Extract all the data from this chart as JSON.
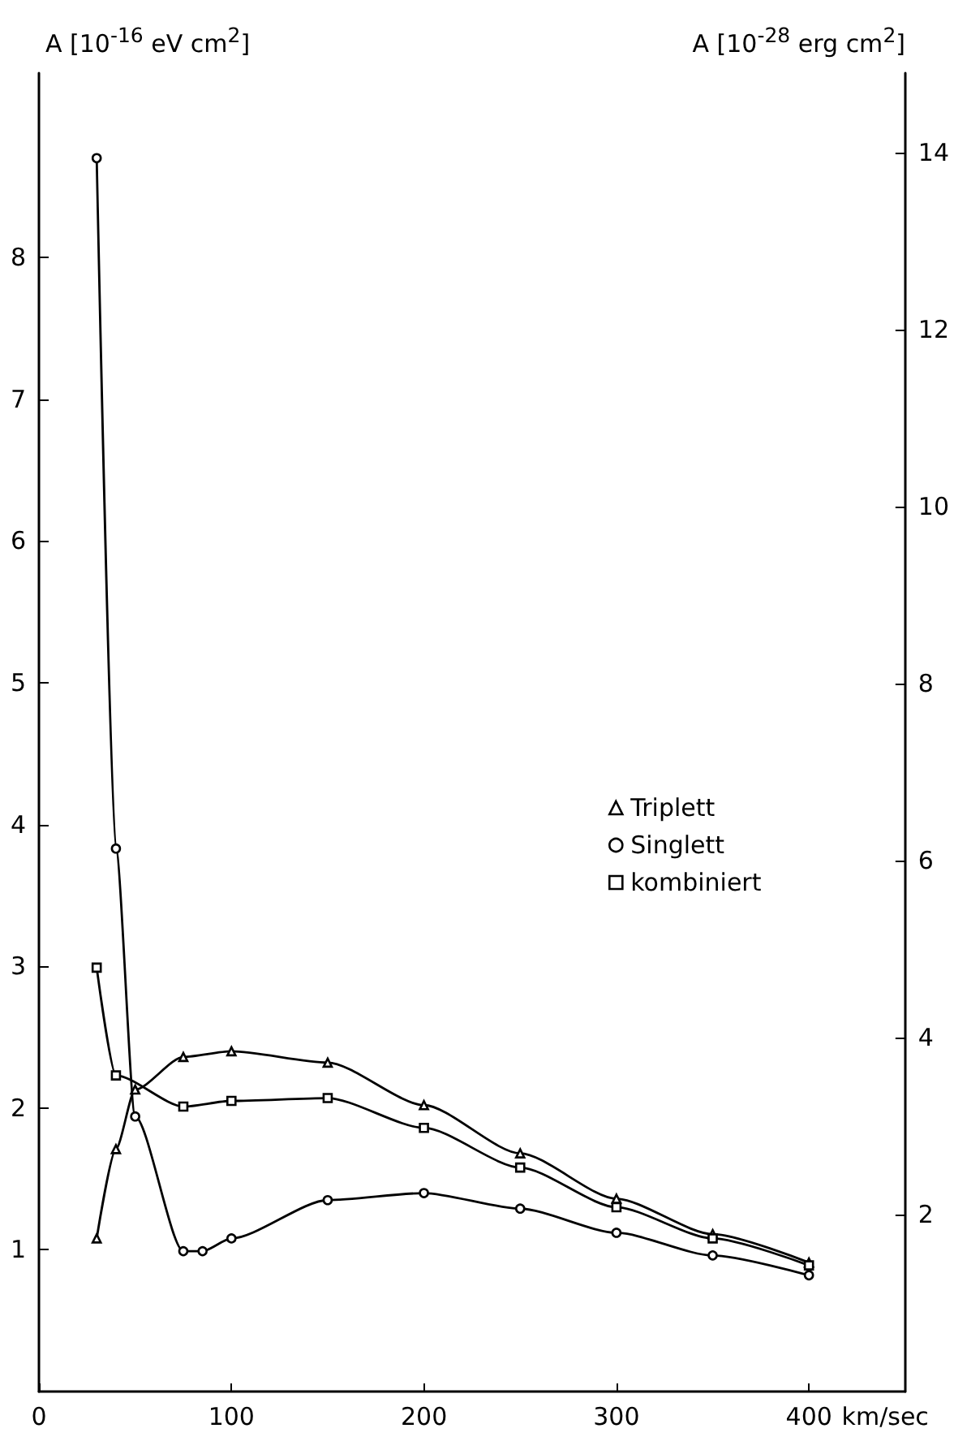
{
  "chart_data": {
    "type": "line",
    "xlabel": "km/sec",
    "ylabel": "A [10$^{-16}$ eV cm$^{2}$]",
    "y2label": "A [10$^{-28}$ erg cm$^{2}$]",
    "xlim": [
      0,
      450
    ],
    "xticks": [
      0,
      100,
      200,
      300,
      400
    ],
    "ylim": [
      0,
      9.3
    ],
    "yticks": [
      1,
      2,
      3,
      4,
      5,
      6,
      7,
      8
    ],
    "y2lim": [
      0,
      14.9
    ],
    "y2ticks": [
      2,
      4,
      6,
      8,
      10,
      12,
      14
    ],
    "grid": false,
    "legend": "right",
    "line_style": "solid",
    "series": [
      {
        "name": "Triplett",
        "color": "#000000",
        "marker": "triangle",
        "x": [
          30,
          40,
          50,
          75,
          100,
          150,
          200,
          250,
          300,
          350,
          400
        ],
        "values": [
          1.08,
          1.71,
          2.13,
          2.36,
          2.4,
          2.32,
          2.02,
          1.68,
          1.36,
          1.11,
          0.91
        ]
      },
      {
        "name": "Singlett",
        "color": "#000000",
        "marker": "circle",
        "x": [
          30,
          40,
          50,
          75,
          85,
          100,
          150,
          200,
          250,
          300,
          350,
          400
        ],
        "values": [
          8.7,
          3.83,
          1.94,
          0.99,
          0.99,
          1.08,
          1.35,
          1.4,
          1.29,
          1.12,
          0.96,
          0.82
        ]
      },
      {
        "name": "kombiniert",
        "color": "#000000",
        "marker": "square",
        "x": [
          30,
          40,
          75,
          100,
          150,
          200,
          250,
          300,
          350,
          400
        ],
        "values": [
          2.99,
          2.23,
          2.01,
          2.05,
          2.07,
          1.86,
          1.58,
          1.3,
          1.08,
          0.89
        ]
      }
    ]
  }
}
